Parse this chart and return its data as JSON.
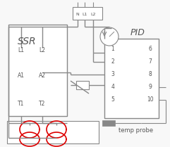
{
  "bg_color": "#ffffff",
  "line_color": "#888888",
  "red_color": "#dd0000",
  "dark_color": "#555555",
  "ssr_label": "SSR",
  "pid_label": "PID",
  "pid_left": [
    "1",
    "2",
    "3",
    "4",
    "5"
  ],
  "pid_right": [
    "6",
    "7",
    "8",
    "9",
    "10"
  ],
  "power_terminals": [
    "N",
    "L1",
    "L2"
  ],
  "temp_probe_label": "temp probe",
  "font_size": 5.5,
  "lw_main": 1.1
}
